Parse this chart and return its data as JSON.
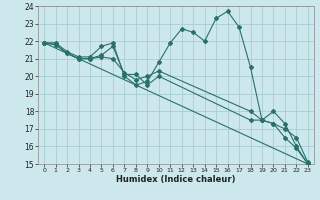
{
  "title": "",
  "xlabel": "Humidex (Indice chaleur)",
  "ylabel": "",
  "bg_color": "#cde8ec",
  "grid_color": "#a8cdd4",
  "line_color": "#2a7068",
  "xlim": [
    -0.5,
    23.5
  ],
  "ylim": [
    15,
    24
  ],
  "xticks": [
    0,
    1,
    2,
    3,
    4,
    5,
    6,
    7,
    8,
    9,
    10,
    11,
    12,
    13,
    14,
    15,
    16,
    17,
    18,
    19,
    20,
    21,
    22,
    23
  ],
  "yticks": [
    15,
    16,
    17,
    18,
    19,
    20,
    21,
    22,
    23,
    24
  ],
  "lines": [
    {
      "x": [
        0,
        1,
        2,
        3,
        4,
        5,
        6,
        7,
        8,
        9,
        10,
        11,
        12,
        13,
        14,
        15,
        16,
        17,
        18,
        19,
        20,
        21,
        22,
        23
      ],
      "y": [
        21.9,
        21.9,
        21.4,
        21.1,
        21.1,
        21.7,
        21.9,
        20.0,
        19.5,
        19.7,
        20.8,
        21.9,
        22.7,
        22.5,
        22.0,
        23.3,
        23.7,
        22.8,
        20.5,
        17.5,
        18.0,
        17.3,
        16.0,
        15.0
      ]
    },
    {
      "x": [
        0,
        1,
        2,
        3,
        4,
        5,
        6,
        7,
        8,
        9,
        10,
        18,
        19,
        20,
        21,
        22,
        23
      ],
      "y": [
        21.9,
        21.8,
        21.3,
        21.0,
        21.0,
        21.1,
        21.0,
        20.2,
        19.8,
        20.0,
        20.3,
        18.0,
        17.5,
        17.3,
        16.5,
        15.9,
        15.0
      ]
    },
    {
      "x": [
        0,
        1,
        2,
        3,
        4,
        5,
        6,
        7,
        8,
        9,
        10,
        18,
        19,
        20,
        21,
        22,
        23
      ],
      "y": [
        21.9,
        21.8,
        21.3,
        21.0,
        21.0,
        21.2,
        21.7,
        20.1,
        20.1,
        19.5,
        20.0,
        17.5,
        17.5,
        17.3,
        17.0,
        16.5,
        15.1
      ]
    },
    {
      "x": [
        0,
        23
      ],
      "y": [
        21.9,
        15.0
      ]
    }
  ]
}
